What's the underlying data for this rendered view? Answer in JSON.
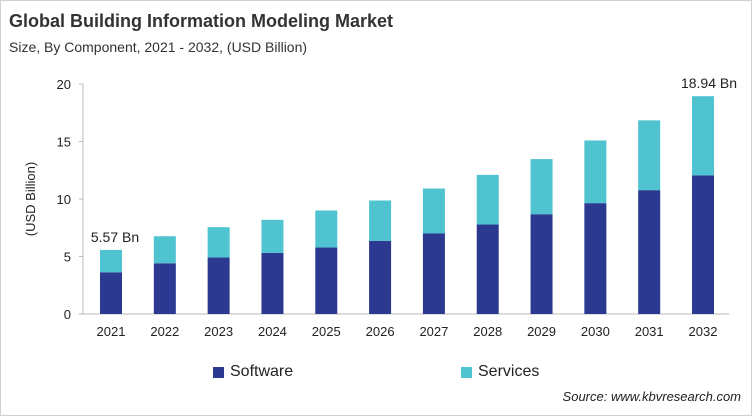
{
  "title": "Global Building Information Modeling Market",
  "subtitle": "Size, By Component, 2021 - 2032, (USD Billion)",
  "source": "Source: www.kbvresearch.com",
  "chart_data": {
    "type": "bar",
    "stacked": true,
    "categories": [
      "2021",
      "2022",
      "2023",
      "2024",
      "2025",
      "2026",
      "2027",
      "2028",
      "2029",
      "2030",
      "2031",
      "2032"
    ],
    "series": [
      {
        "name": "Software",
        "color": "#2b3990",
        "values": [
          3.63,
          4.41,
          4.91,
          5.31,
          5.78,
          6.36,
          7.0,
          7.78,
          8.68,
          9.64,
          10.77,
          12.05
        ]
      },
      {
        "name": "Services",
        "color": "#4fc3cf",
        "values": [
          1.94,
          2.35,
          2.64,
          2.88,
          3.22,
          3.51,
          3.91,
          4.32,
          4.79,
          5.45,
          6.07,
          6.89
        ]
      }
    ],
    "annotations": [
      {
        "category": "2021",
        "text": "5.57 Bn"
      },
      {
        "category": "2032",
        "text": "18.94  Bn"
      }
    ],
    "ylabel": "(USD Billion)",
    "ylim": [
      0,
      20
    ],
    "yticks": [
      "0",
      "5",
      "10",
      "15",
      "20"
    ],
    "grid": false,
    "legend": "bottom"
  }
}
